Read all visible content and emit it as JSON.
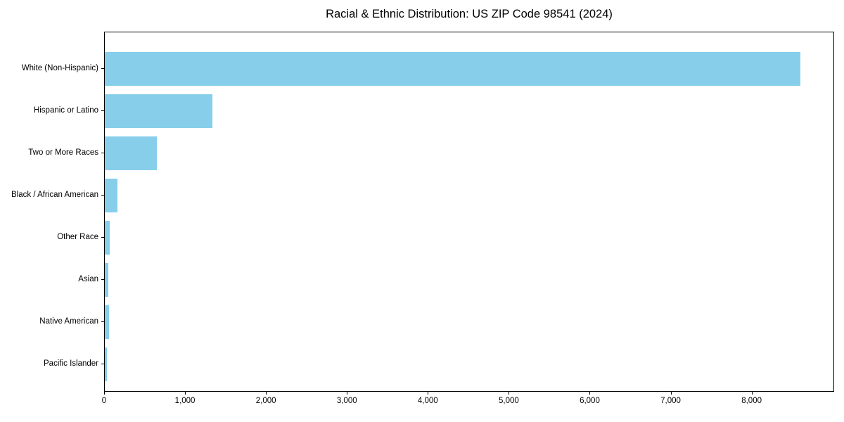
{
  "chart_data": {
    "type": "bar",
    "orientation": "horizontal",
    "title": "Racial & Ethnic Distribution: US ZIP Code 98541 (2024)",
    "categories": [
      "White (Non-Hispanic)",
      "Hispanic or Latino",
      "Two or More Races",
      "Black / African American",
      "Other Race",
      "Asian",
      "Native American",
      "Pacific Islander"
    ],
    "values": [
      8590,
      1330,
      640,
      155,
      60,
      42,
      50,
      25
    ],
    "xlabel": "",
    "ylabel": "",
    "xlim": [
      0,
      9020
    ],
    "xticks": [
      0,
      1000,
      2000,
      3000,
      4000,
      5000,
      6000,
      7000,
      8000
    ],
    "xtick_labels": [
      "0",
      "1,000",
      "2,000",
      "3,000",
      "4,000",
      "5,000",
      "6,000",
      "7,000",
      "8,000"
    ],
    "grid": false,
    "legend": "none",
    "bar_color": "#87CEEB",
    "axis_color": "#000000",
    "background_color": "#ffffff"
  }
}
